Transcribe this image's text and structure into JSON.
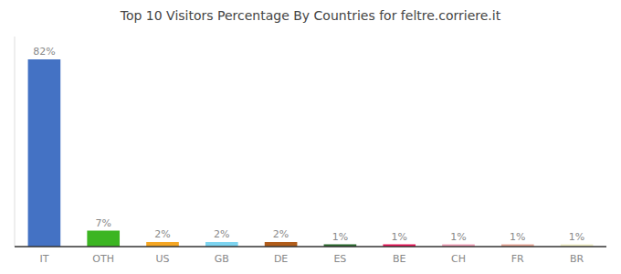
{
  "chart_data": {
    "type": "bar",
    "title": "Top 10 Visitors Percentage By Countries for feltre.corriere.it",
    "categories": [
      "IT",
      "OTH",
      "US",
      "GB",
      "DE",
      "ES",
      "BE",
      "CH",
      "FR",
      "BR"
    ],
    "values": [
      82,
      7,
      2,
      2,
      2,
      1,
      1,
      1,
      1,
      1
    ],
    "value_labels": [
      "82%",
      "7%",
      "2%",
      "2%",
      "2%",
      "1%",
      "1%",
      "1%",
      "1%",
      "1%"
    ],
    "colors": [
      "#4472c4",
      "#3cb522",
      "#f5a623",
      "#7dd4f0",
      "#b05c1a",
      "#2a6b2e",
      "#e8185a",
      "#f0a0b8",
      "#e8a898",
      "#f0eec8"
    ],
    "data_labels": true,
    "ylim": [
      0,
      92
    ],
    "tick_labels": "x",
    "grid": false
  }
}
